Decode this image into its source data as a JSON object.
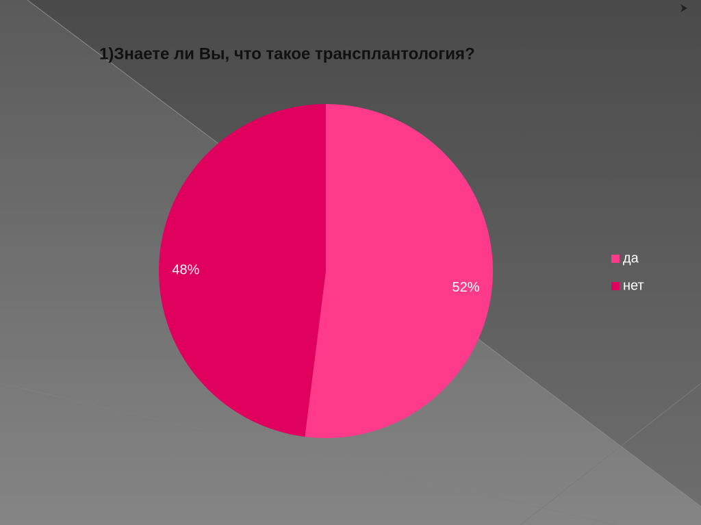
{
  "chart_data": {
    "type": "pie",
    "title": "1)Знаете ли Вы, что такое трансплантология?",
    "categories": [
      "да",
      "нет"
    ],
    "values": [
      52,
      48
    ],
    "value_labels": [
      "52%",
      "48%"
    ],
    "colors": [
      "#fe3a8a",
      "#e0005e"
    ],
    "legend": "right"
  }
}
